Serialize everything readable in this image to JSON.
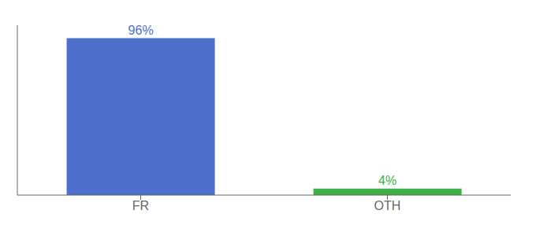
{
  "chart_data": {
    "type": "bar",
    "categories": [
      "FR",
      "OTH"
    ],
    "values": [
      96,
      4
    ],
    "value_labels": [
      "96%",
      "4%"
    ],
    "colors": [
      "#4f6fcc",
      "#3cb043"
    ],
    "ylim": [
      0,
      104
    ],
    "data_labels": true,
    "tick_labels": "x",
    "grid": false
  }
}
